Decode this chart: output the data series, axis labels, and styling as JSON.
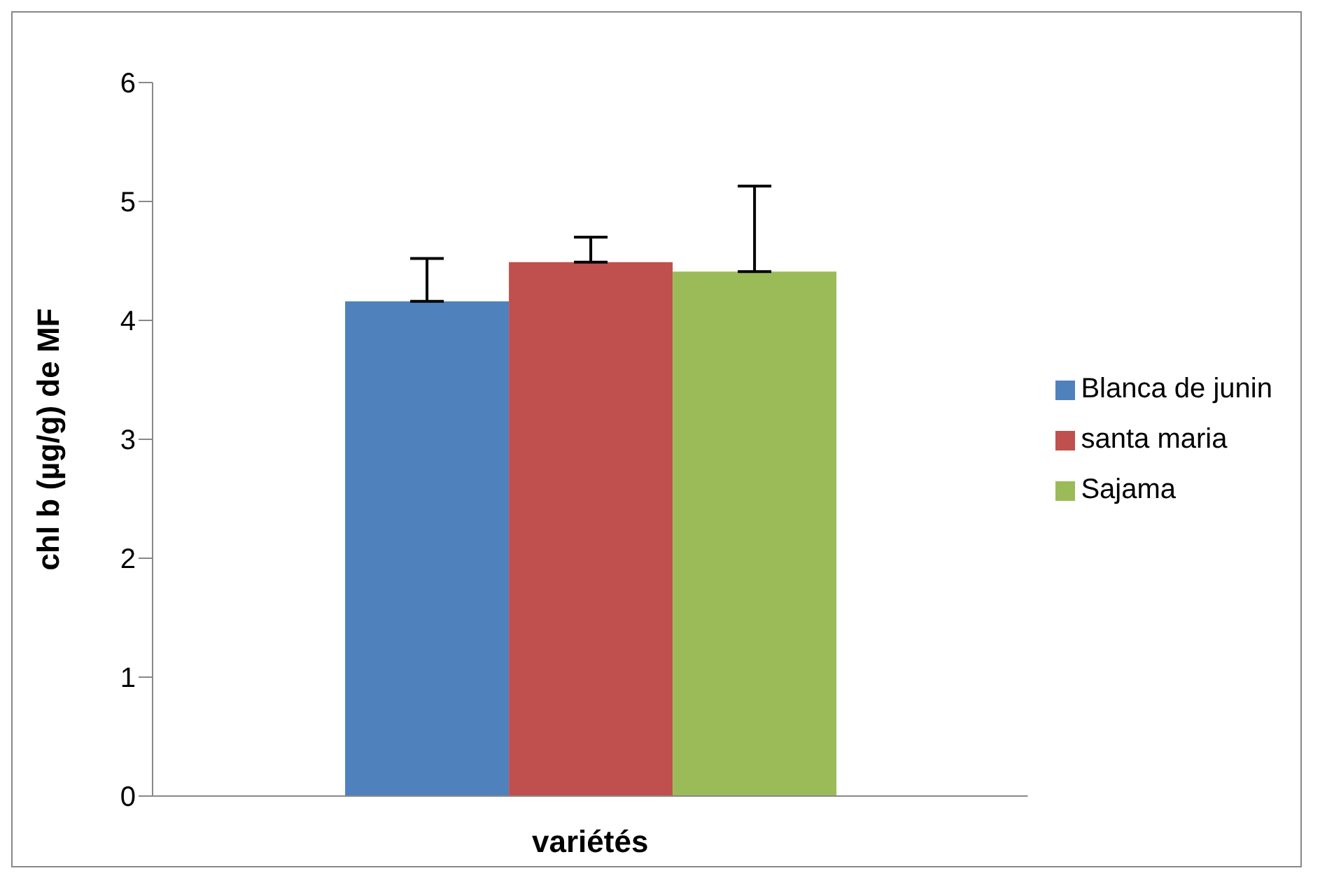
{
  "chart_data": {
    "type": "bar",
    "xlabel": "variétés",
    "ylabel": "chl b (µg/g) de MF",
    "categories": [
      null
    ],
    "series": [
      {
        "name": "Blanca de junin",
        "color": "#4f81bd",
        "values": [
          4.16
        ],
        "errors": [
          [
            4.16,
            4.52
          ]
        ]
      },
      {
        "name": "santa maria",
        "color": "#c0504d",
        "values": [
          4.49
        ],
        "errors": [
          [
            4.49,
            4.7
          ]
        ]
      },
      {
        "name": "Sajama",
        "color": "#9bbb59",
        "values": [
          4.41
        ],
        "errors": [
          [
            4.41,
            5.13
          ]
        ]
      }
    ],
    "ylim": [
      0,
      6
    ],
    "yticks": [
      0,
      1,
      2,
      3,
      4,
      5,
      6
    ],
    "grid": false,
    "legend": "right"
  }
}
